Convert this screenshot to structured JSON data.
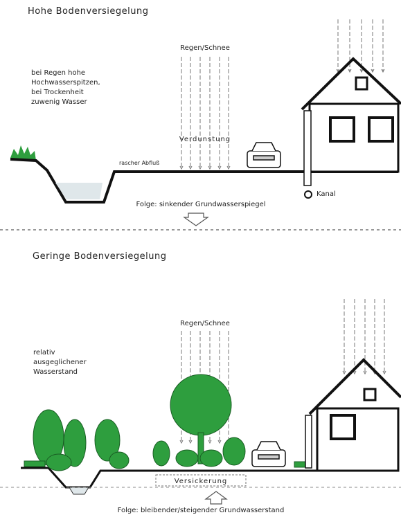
{
  "panels": [
    {
      "title": "Hohe Bodenversiegelung",
      "rain_label": "Regen/Schnee",
      "note_lines": [
        "bei Regen hohe",
        "Hochwasserspitzen,",
        "bei Trockenheit",
        "zuwenig Wasser"
      ],
      "evaporation_label": "Verdunstung",
      "runoff_label": "rascher Abfluß",
      "sewer_label": "Kanal",
      "consequence": "Folge: sinkender Grundwasserspiegel"
    },
    {
      "title": "Geringe Bodenversiegelung",
      "rain_label": "Regen/Schnee",
      "note_lines": [
        "relativ",
        "ausgeglichener",
        "Wasserstand"
      ],
      "infiltration_label": "Versickerung",
      "consequence": "Folge: bleibender/steigender Grundwasserstand"
    }
  ]
}
